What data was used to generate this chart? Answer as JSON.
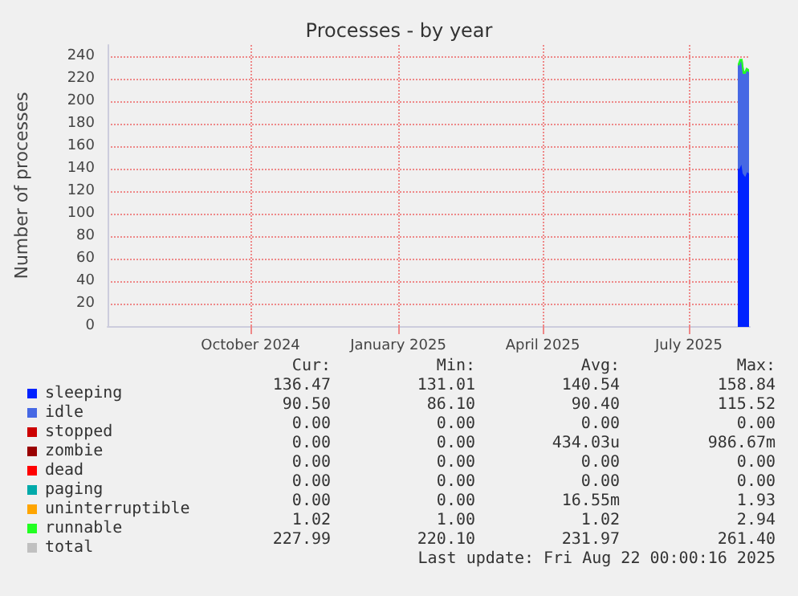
{
  "chart_data": {
    "type": "area",
    "stacked": true,
    "title": "Processes - by year",
    "ylabel": "Number of processes",
    "x": [
      "2025-08-01",
      "2025-08-02",
      "2025-08-03",
      "2025-08-04",
      "2025-08-05",
      "2025-08-06",
      "2025-08-07"
    ],
    "xlim": [
      "2024-07-04",
      "2025-08-08"
    ],
    "xticks": [
      {
        "value": "2024-10-01",
        "label": "October 2024"
      },
      {
        "value": "2025-01-01",
        "label": "January 2025"
      },
      {
        "value": "2025-04-01",
        "label": "April 2025"
      },
      {
        "value": "2025-07-01",
        "label": "July 2025"
      }
    ],
    "ylim": [
      0,
      250
    ],
    "yticks": [
      0,
      20,
      40,
      60,
      80,
      100,
      120,
      140,
      160,
      180,
      200,
      220,
      240
    ],
    "grid": true,
    "legend": "bottom left",
    "series": [
      {
        "name": "sleeping",
        "color": "#0022ff",
        "values": [
          140,
          143,
          146,
          136,
          134,
          138,
          137
        ]
      },
      {
        "name": "idle",
        "color": "#4668e4",
        "values": [
          92,
          93,
          90,
          89,
          91,
          90,
          90
        ]
      },
      {
        "name": "stopped",
        "color": "#cc0000",
        "values": [
          null,
          null,
          null,
          null,
          null,
          null,
          null
        ]
      },
      {
        "name": "zombie",
        "color": "#990000",
        "values": [
          null,
          null,
          null,
          null,
          null,
          null,
          null
        ]
      },
      {
        "name": "dead",
        "color": "#ff0000",
        "values": [
          null,
          null,
          null,
          null,
          null,
          null,
          null
        ]
      },
      {
        "name": "paging",
        "color": "#00aaaa",
        "values": [
          null,
          null,
          null,
          null,
          null,
          null,
          null
        ]
      },
      {
        "name": "uninterruptible",
        "color": "#ffa500",
        "values": [
          null,
          null,
          null,
          null,
          null,
          null,
          null
        ]
      },
      {
        "name": "runnable",
        "color": "#22ff22",
        "values": [
          1,
          1,
          1,
          1,
          1,
          1,
          1
        ]
      },
      {
        "name": "total",
        "type": "line",
        "color": "#c0c0c0",
        "values": [
          null,
          null,
          null,
          null,
          null,
          null,
          null
        ]
      }
    ],
    "annotations": [
      "Cur:",
      "Min:",
      "Avg:",
      "Max:",
      "136.47",
      "131.01",
      "140.54",
      "158.84",
      "90.50",
      "86.10",
      "90.40",
      "115.52",
      "0.00",
      "0.00",
      "0.00",
      "0.00",
      "0.00",
      "0.00",
      "434.03u",
      "986.67m",
      "0.00",
      "0.00",
      "0.00",
      "0.00",
      "0.00",
      "0.00",
      "0.00",
      "0.00",
      "0.00",
      "0.00",
      "16.55m",
      "1.93",
      "1.02",
      "1.00",
      "1.02",
      "2.94",
      "227.99",
      "220.10",
      "231.97",
      "261.40",
      "Last update: Fri Aug 22 00:00:16 2025"
    ]
  }
}
